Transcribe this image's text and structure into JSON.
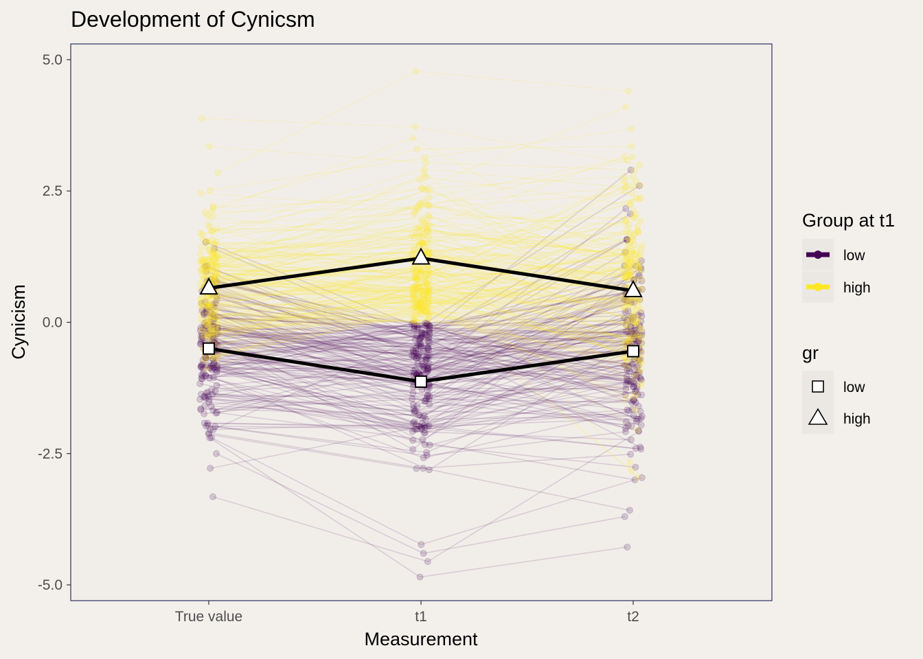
{
  "chart_data": {
    "type": "line",
    "title": "Development of Cynicsm",
    "xlabel": "Measurement",
    "ylabel": "Cynicism",
    "categories": [
      "True value",
      "t1",
      "t2"
    ],
    "ylim": [
      -5.3,
      5.3
    ],
    "yticks": [
      -5.0,
      -2.5,
      0.0,
      2.5,
      5.0
    ],
    "ytick_labels": [
      "-5.0",
      "-2.5",
      "0.0",
      "2.5",
      "5.0"
    ],
    "grid": false,
    "legend_position": "right",
    "legends": [
      {
        "title": "Group at t1",
        "entries": [
          {
            "label": "low",
            "color": "#440154"
          },
          {
            "label": "high",
            "color": "#FDE725"
          }
        ]
      },
      {
        "title": "gr",
        "entries": [
          {
            "label": "low",
            "shape": "square"
          },
          {
            "label": "high",
            "shape": "triangle"
          }
        ]
      }
    ],
    "series": [
      {
        "name": "high",
        "shape": "triangle",
        "values": [
          0.65,
          1.22,
          0.6
        ]
      },
      {
        "name": "low",
        "shape": "square",
        "values": [
          -0.5,
          -1.13,
          -0.55
        ]
      }
    ],
    "individual_lines": {
      "count_per_group": 170,
      "colors": {
        "low": "#440154",
        "high": "#FDE725"
      },
      "opacity": 0.14,
      "individual_points": [
        {
          "group": "high",
          "values": [
            3.88,
            3.72,
            3.0
          ]
        },
        {
          "group": "high",
          "values": [
            2.85,
            4.78,
            4.4
          ]
        },
        {
          "group": "high",
          "values": [
            2.2,
            3.3,
            3.35
          ]
        },
        {
          "group": "low",
          "values": [
            -2.2,
            -4.85,
            -4.28
          ]
        },
        {
          "group": "low",
          "values": [
            -2.5,
            -4.4,
            -3.7
          ]
        },
        {
          "group": "low",
          "values": [
            1.4,
            -0.3,
            2.9
          ]
        },
        {
          "group": "low",
          "values": [
            0.8,
            -0.1,
            2.6
          ]
        }
      ]
    }
  }
}
